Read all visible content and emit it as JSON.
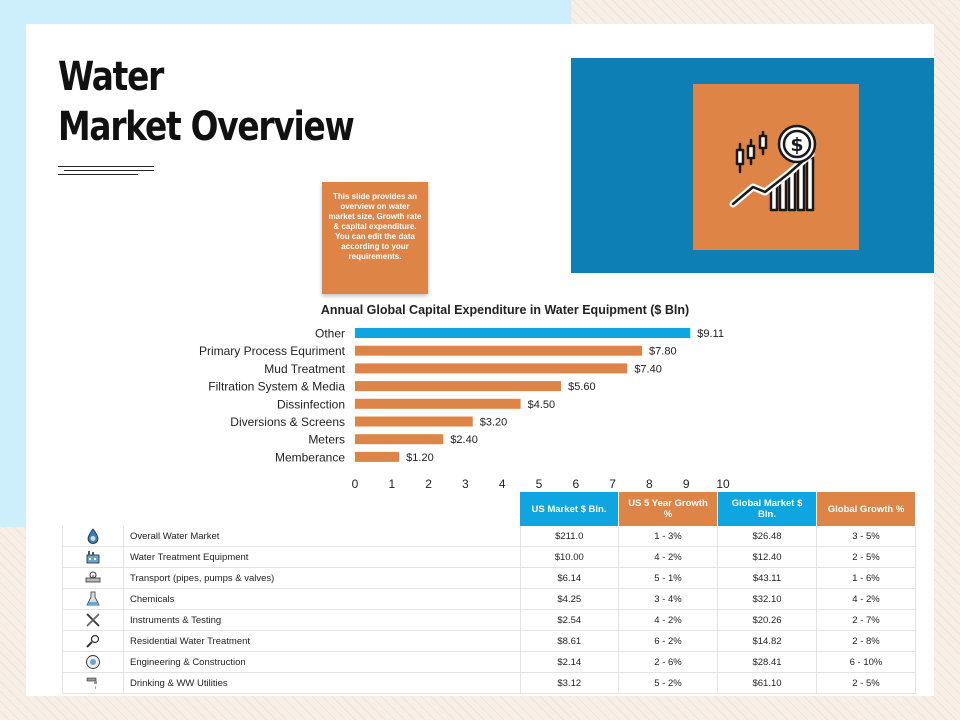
{
  "header": {
    "title_line1": "Water",
    "title_line2": "Market Overview"
  },
  "note": "This slide provides an overview on water market size, Growth rate & capital expenditure. You can edit the data according to your requirements.",
  "icons": {
    "hero": "candlestick-dollar-growth-icon"
  },
  "colors": {
    "accent_orange": "#de8447",
    "accent_blue": "#0ea5e0",
    "panel_blue": "#0e7fb5"
  },
  "chart_data": {
    "type": "bar",
    "orientation": "horizontal",
    "title": "Annual Global Capital Expenditure in Water Equipment ($ Bln)",
    "categories": [
      "Other",
      "Primary Process Equriment",
      "Mud Treatment",
      "Filtration System & Media",
      "Dissinfection",
      "Diversions & Screens",
      "Meters",
      "Memberance"
    ],
    "values": [
      9.11,
      7.8,
      7.4,
      5.6,
      4.5,
      3.2,
      2.4,
      1.2
    ],
    "value_labels": [
      "$9.11",
      "$7.80",
      "$7.40",
      "$5.60",
      "$4.50",
      "$3.20",
      "$2.40",
      "$1.20"
    ],
    "bar_colors": [
      "#0ea5e0",
      "#de8447",
      "#de8447",
      "#de8447",
      "#de8447",
      "#de8447",
      "#de8447",
      "#de8447"
    ],
    "xlim": [
      0,
      10
    ],
    "xticks": [
      0,
      1,
      2,
      3,
      4,
      5,
      6,
      7,
      8,
      9,
      10
    ],
    "grid": false
  },
  "table": {
    "headers": [
      "US Market $ Bln.",
      "US 5 Year Growth %",
      "Global Market $ Bln.",
      "Global Growth %"
    ],
    "rows": [
      {
        "icon": "water-drop-globe-icon",
        "name": "Overall Water Market",
        "us_market": "$211.0",
        "us_growth": "1 - 3%",
        "global_market": "$26.48",
        "global_growth": "3 - 5%"
      },
      {
        "icon": "factory-icon",
        "name": "Water Treatment Equipment",
        "us_market": "$10.00",
        "us_growth": "4 - 2%",
        "global_market": "$12.40",
        "global_growth": "2 - 5%"
      },
      {
        "icon": "pipe-valve-icon",
        "name": "Transport (pipes, pumps & valves)",
        "us_market": "$6.14",
        "us_growth": "5 - 1%",
        "global_market": "$43.11",
        "global_growth": "1 - 6%"
      },
      {
        "icon": "chemical-flask-icon",
        "name": "Chemicals",
        "us_market": "$4.25",
        "us_growth": "3 - 4%",
        "global_market": "$32.10",
        "global_growth": "4 - 2%"
      },
      {
        "icon": "tools-icon",
        "name": "Instruments & Testing",
        "us_market": "$2.54",
        "us_growth": "4 - 2%",
        "global_market": "$20.26",
        "global_growth": "2 - 7%"
      },
      {
        "icon": "wrench-gear-icon",
        "name": "Residential Water Treatment",
        "us_market": "$8.61",
        "us_growth": "6 - 2%",
        "global_market": "$14.82",
        "global_growth": "2 - 8%"
      },
      {
        "icon": "engineering-badge-icon",
        "name": "Engineering & Construction",
        "us_market": "$2.14",
        "us_growth": "2 - 6%",
        "global_market": "$28.41",
        "global_growth": "6 - 10%"
      },
      {
        "icon": "faucet-icon",
        "name": "Drinking & WW Utilities",
        "us_market": "$3.12",
        "us_growth": "5 - 2%",
        "global_market": "$61.10",
        "global_growth": "2 - 5%"
      }
    ]
  }
}
